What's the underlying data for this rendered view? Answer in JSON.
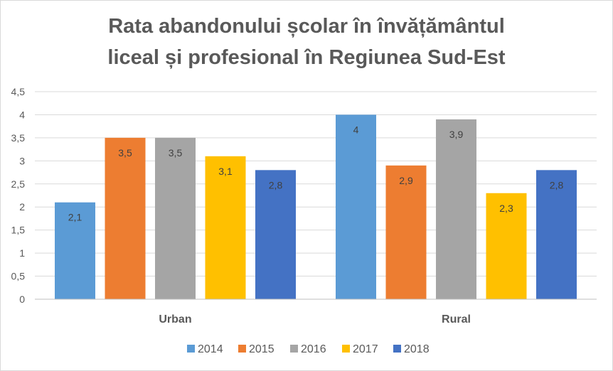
{
  "chart_data": {
    "type": "bar",
    "title_lines": [
      "Rata abandonului școlar în învățământul",
      "liceal și profesional în Regiunea Sud-Est"
    ],
    "xlabel": "",
    "ylabel": "",
    "categories": [
      "Urban",
      "Rural"
    ],
    "series": [
      {
        "name": "2014",
        "color": "#5B9BD5",
        "values": [
          2.1,
          4.0
        ],
        "labels": [
          "2,1",
          "4"
        ]
      },
      {
        "name": "2015",
        "color": "#ED7D31",
        "values": [
          3.5,
          2.9
        ],
        "labels": [
          "3,5",
          "2,9"
        ]
      },
      {
        "name": "2016",
        "color": "#A5A5A5",
        "values": [
          3.5,
          3.9
        ],
        "labels": [
          "3,5",
          "3,9"
        ]
      },
      {
        "name": "2017",
        "color": "#FFC000",
        "values": [
          3.1,
          2.3
        ],
        "labels": [
          "3,1",
          "2,3"
        ]
      },
      {
        "name": "2018",
        "color": "#4472C4",
        "values": [
          2.8,
          2.8
        ],
        "labels": [
          "2,8",
          "2,8"
        ]
      }
    ],
    "ylim": [
      0,
      4.5
    ],
    "yticks": [
      0,
      0.5,
      1,
      1.5,
      2,
      2.5,
      3,
      3.5,
      4,
      4.5
    ],
    "ytick_labels": [
      "0",
      "0,5",
      "1",
      "1,5",
      "2",
      "2,5",
      "3",
      "3,5",
      "4",
      "4,5"
    ],
    "grid": true,
    "legend_position": "bottom"
  }
}
